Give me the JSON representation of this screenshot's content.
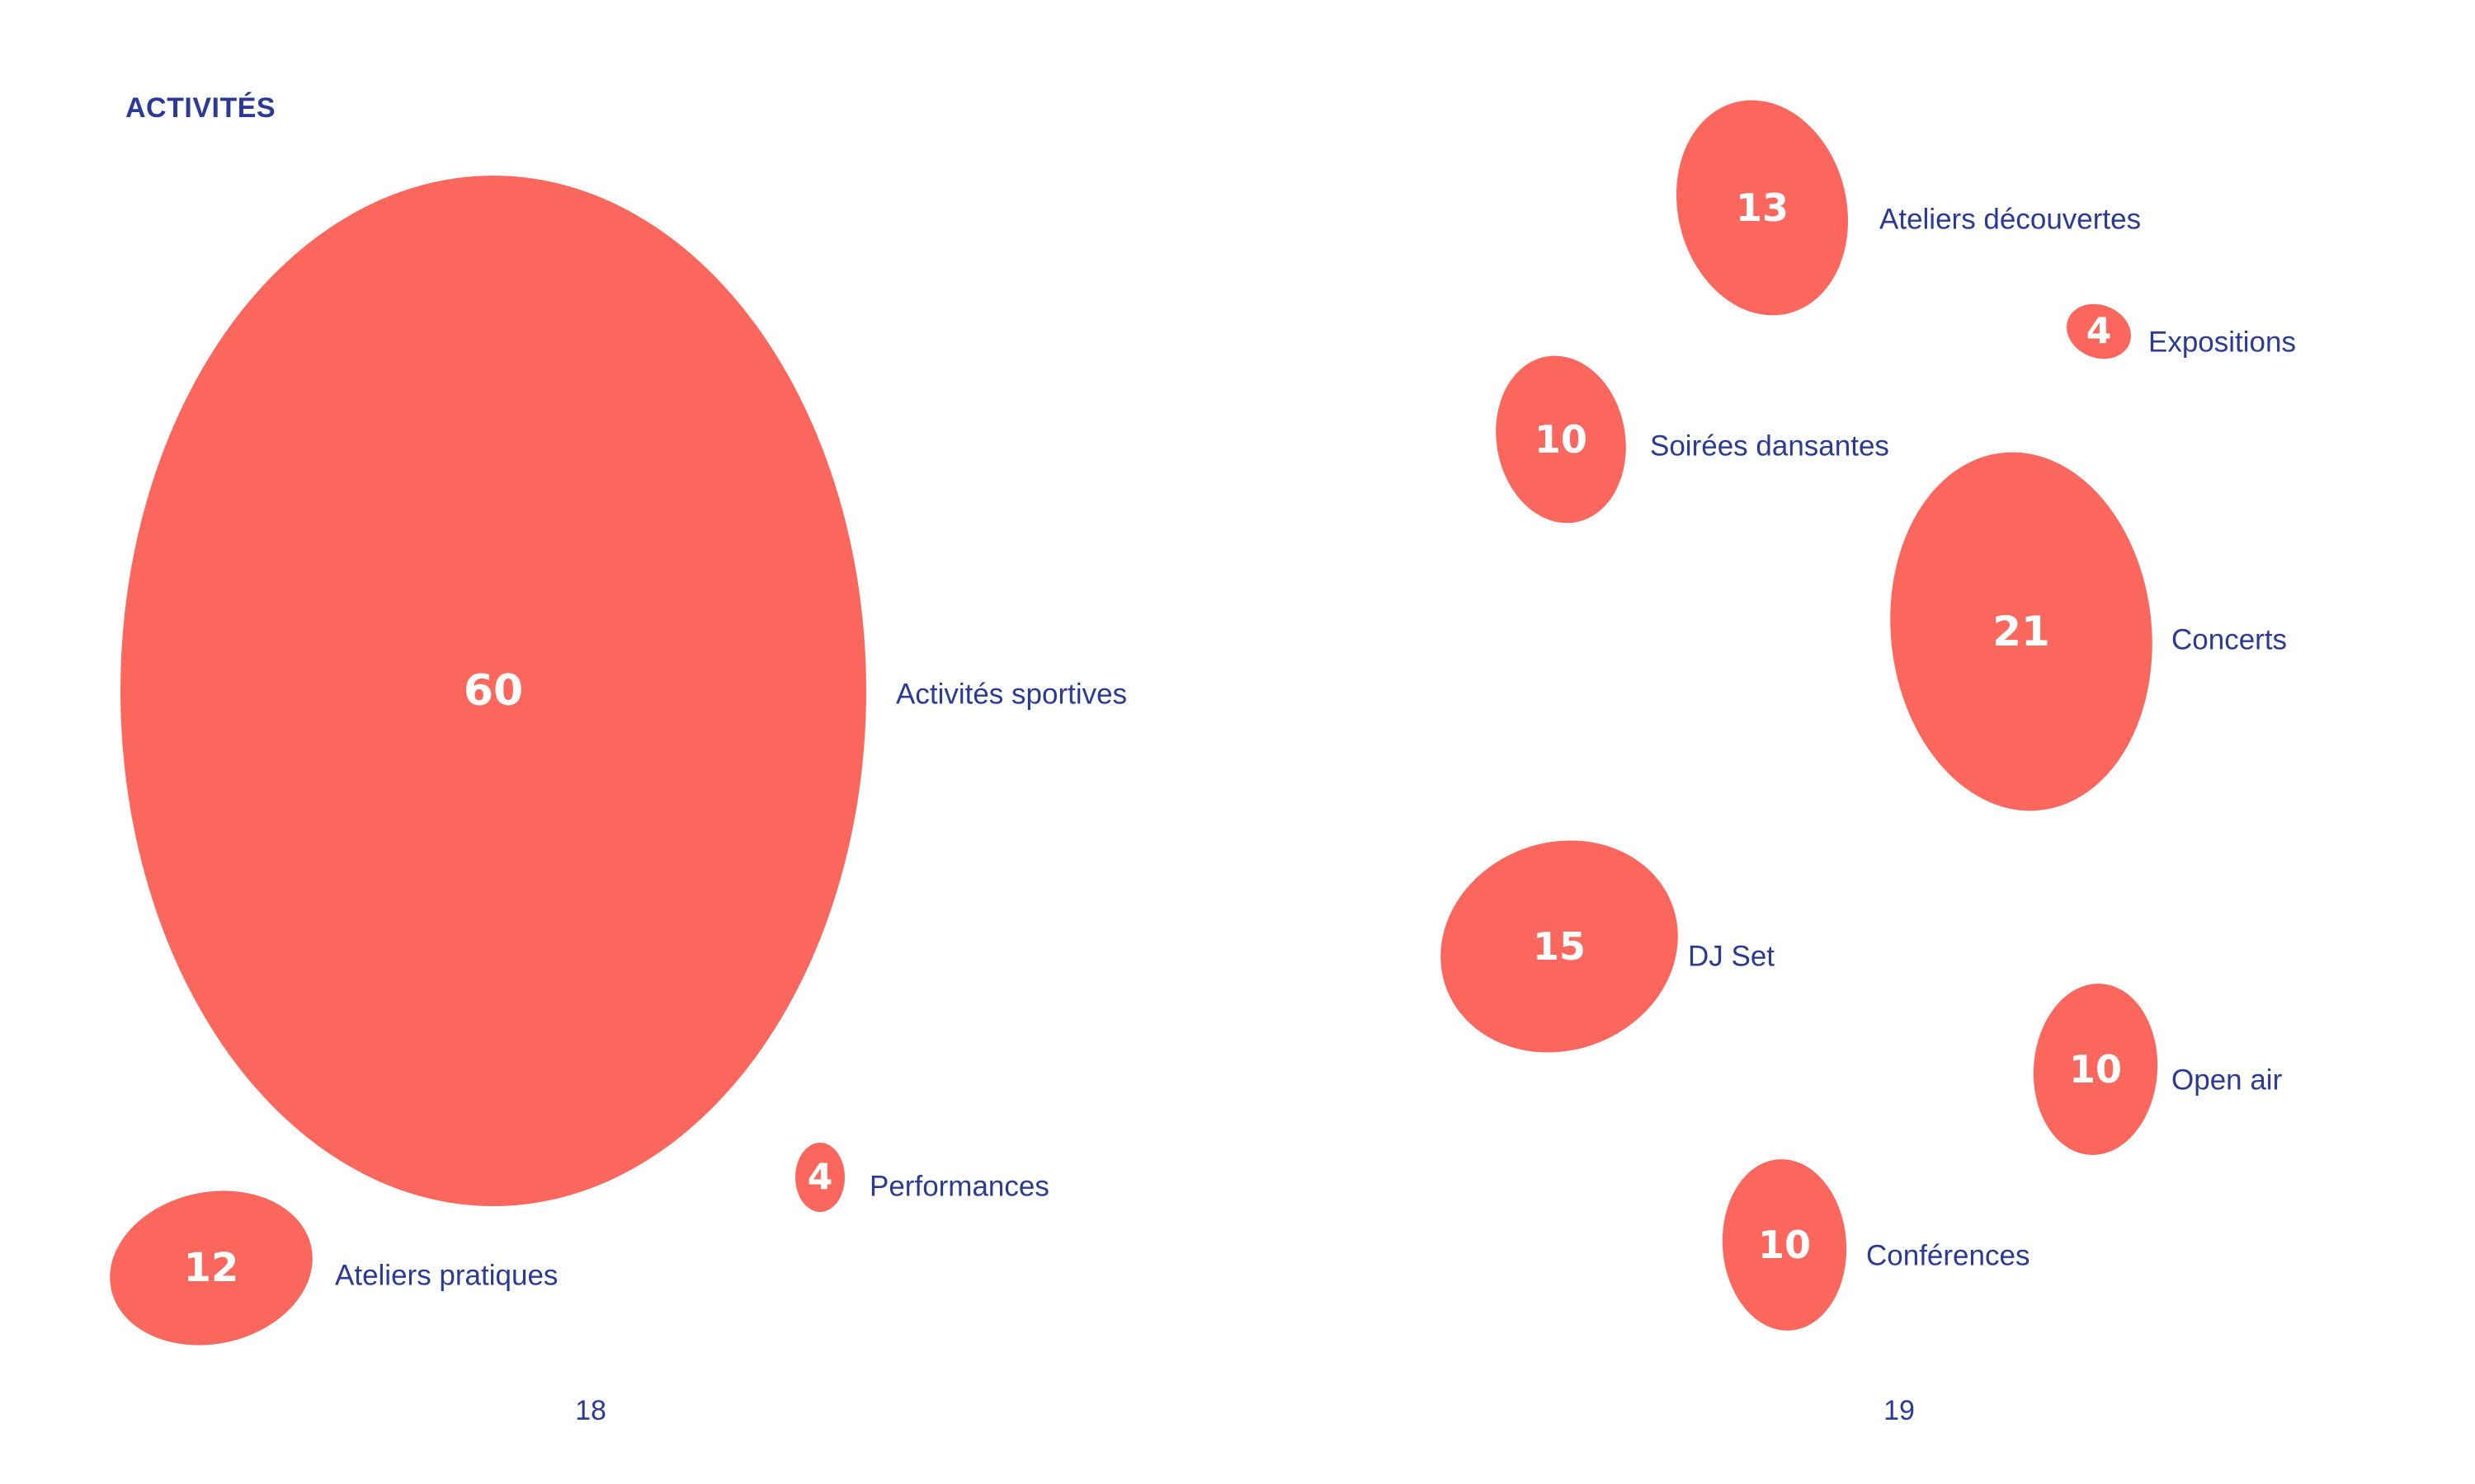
{
  "heading": "ACTIVITÉS",
  "pages": {
    "left": "18",
    "right": "19"
  },
  "colors": {
    "bubble": "#fb675c",
    "text": "#2b3a94",
    "value": "#ffffff"
  },
  "chart_data": {
    "type": "bubble",
    "title": "ACTIVITÉS",
    "series": [
      {
        "name": "Activités sportives",
        "value": 60
      },
      {
        "name": "Ateliers pratiques",
        "value": 12
      },
      {
        "name": "Performances",
        "value": 4
      },
      {
        "name": "Ateliers découvertes",
        "value": 13
      },
      {
        "name": "Expositions",
        "value": 4
      },
      {
        "name": "Soirées dansantes",
        "value": 10
      },
      {
        "name": "Concerts",
        "value": 21
      },
      {
        "name": "DJ Set",
        "value": 15
      },
      {
        "name": "Open air",
        "value": 10
      },
      {
        "name": "Conférences",
        "value": 10
      }
    ]
  }
}
